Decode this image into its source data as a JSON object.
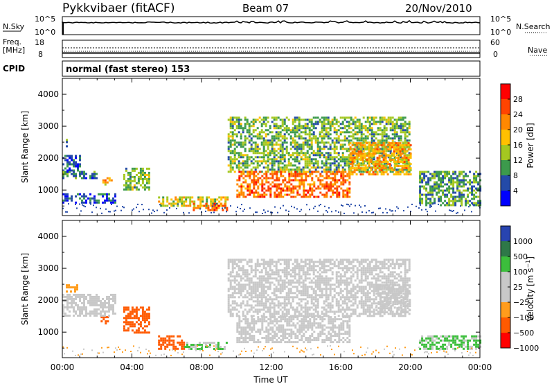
{
  "header": {
    "station": "Pykkvibaer (fitACF)",
    "beam": "Beam 07",
    "date": "20/Nov/2010"
  },
  "top_panel": {
    "left_label": "N.Sky",
    "left_ticks": [
      "10^5",
      "10^0"
    ],
    "right_ticks": [
      "10^5",
      "10^0"
    ],
    "right_label": "N.Search"
  },
  "freq_panel": {
    "left_label_1": "Freq.",
    "left_label_2": "[MHz]",
    "left_ticks": [
      "18",
      "8"
    ],
    "right_ticks": [
      "60",
      "0"
    ],
    "right_label": "Nave"
  },
  "cpid": {
    "label": "CPID",
    "mode": "normal (fast stereo) 153"
  },
  "chart_data": [
    {
      "type": "heatmap",
      "panel": "power",
      "ylabel": "Slant Range [km]",
      "yticks": [
        "4000",
        "3000",
        "2000",
        "1000"
      ],
      "ylim": [
        200,
        4500
      ],
      "xlim": [
        0,
        24
      ],
      "colorbar_label": "Power [dB]",
      "colorbar_ticks": [
        "28",
        "24",
        "20",
        "16",
        "12",
        "8",
        "4"
      ],
      "colorbar_colors": [
        "#ff0000",
        "#ff4400",
        "#ff8800",
        "#ffc000",
        "#a4c820",
        "#3c9a4c",
        "#244aa8",
        "#0000ff"
      ],
      "regions": [
        {
          "t": [
            0.2,
            0.3
          ],
          "r": [
            2300,
            2600
          ],
          "v": 8
        },
        {
          "t": [
            0.0,
            1.0
          ],
          "r": [
            1600,
            2100
          ],
          "v": 6
        },
        {
          "t": [
            0.0,
            2.0
          ],
          "r": [
            1400,
            1600
          ],
          "v": 8
        },
        {
          "t": [
            0.0,
            3.0
          ],
          "r": [
            600,
            900
          ],
          "v": 6
        },
        {
          "t": [
            2.3,
            2.8
          ],
          "r": [
            1200,
            1400
          ],
          "v": 20
        },
        {
          "t": [
            3.5,
            5.0
          ],
          "r": [
            1000,
            1700
          ],
          "v": 12
        },
        {
          "t": [
            5.5,
            9.5
          ],
          "r": [
            500,
            800
          ],
          "v": 16
        },
        {
          "t": [
            7.5,
            9.5
          ],
          "r": [
            400,
            600
          ],
          "v": 24
        },
        {
          "t": [
            9.5,
            20.0
          ],
          "r": [
            1600,
            3300
          ],
          "v": 12
        },
        {
          "t": [
            10.0,
            16.5
          ],
          "r": [
            800,
            1600
          ],
          "v": 24
        },
        {
          "t": [
            16.5,
            20.0
          ],
          "r": [
            1500,
            2500
          ],
          "v": 20
        },
        {
          "t": [
            20.5,
            24.0
          ],
          "r": [
            500,
            1600
          ],
          "v": 10
        }
      ]
    },
    {
      "type": "heatmap",
      "panel": "velocity",
      "ylabel": "Slant Range [km]",
      "yticks": [
        "4000",
        "3000",
        "2000",
        "1000"
      ],
      "ylim": [
        200,
        4500
      ],
      "xlim": [
        0,
        24
      ],
      "colorbar_label": "Velocity [m s^-1]",
      "colorbar_ticks": [
        "1000",
        "500",
        "100",
        "25",
        "−25",
        "−100",
        "−500",
        "−1000"
      ],
      "colorbar_colors": [
        "#2844b0",
        "#2e7848",
        "#3cbe3c",
        "#c8c8c8",
        "#c8c8c8",
        "#ff9c1c",
        "#ff5a00",
        "#ff0000"
      ],
      "regions": [
        {
          "t": [
            0.2,
            0.8
          ],
          "r": [
            2300,
            2500
          ],
          "v": -100
        },
        {
          "t": [
            2.2,
            2.6
          ],
          "r": [
            1300,
            1500
          ],
          "v": -300
        },
        {
          "t": [
            0.0,
            3.0
          ],
          "r": [
            1500,
            2200
          ],
          "v": 0
        },
        {
          "t": [
            3.5,
            5.0
          ],
          "r": [
            1000,
            1800
          ],
          "v": -300
        },
        {
          "t": [
            5.5,
            7.0
          ],
          "r": [
            500,
            900
          ],
          "v": -300
        },
        {
          "t": [
            7.0,
            9.5
          ],
          "r": [
            500,
            700
          ],
          "v": 60
        },
        {
          "t": [
            9.5,
            20.0
          ],
          "r": [
            1500,
            3300
          ],
          "v": 0
        },
        {
          "t": [
            10.0,
            16.5
          ],
          "r": [
            700,
            1500
          ],
          "v": 0
        },
        {
          "t": [
            20.5,
            24.0
          ],
          "r": [
            500,
            900
          ],
          "v": 60
        },
        {
          "t": [
            18.0,
            20.0
          ],
          "r": [
            1600,
            2500
          ],
          "v": 0
        }
      ]
    }
  ],
  "xaxis": {
    "label": "Time UT",
    "ticks": [
      "00:00",
      "04:00",
      "08:00",
      "12:00",
      "16:00",
      "20:00",
      "00:00"
    ]
  }
}
